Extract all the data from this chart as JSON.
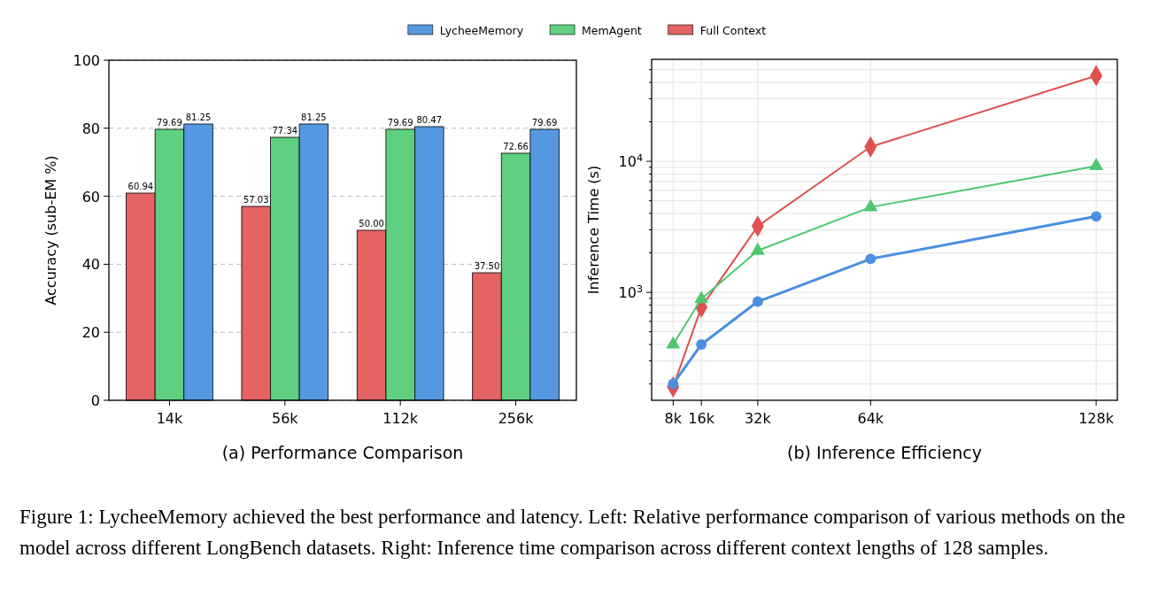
{
  "chart_data": [
    {
      "type": "bar",
      "categories": [
        "14k",
        "56k",
        "112k",
        "256k"
      ],
      "ylabel": "Accuracy (sub-EM %)",
      "xlabel": "(a) Performance Comparison",
      "ylim": [
        0,
        100
      ],
      "yticks": [
        0,
        20,
        40,
        60,
        80,
        100
      ],
      "grid": "y",
      "legend": "top",
      "series": [
        {
          "name": "Full Context",
          "color": "#e36463",
          "values": [
            60.94,
            57.03,
            50.0,
            37.5
          ],
          "value_labels": [
            "60.94",
            "57.03",
            "50.00",
            "37.50"
          ]
        },
        {
          "name": "MemAgent",
          "color": "#5fcf80",
          "values": [
            79.69,
            77.34,
            79.69,
            72.66
          ],
          "value_labels": [
            "79.69",
            "77.34",
            "79.69",
            "72.66"
          ]
        },
        {
          "name": "LycheeMemory",
          "color": "#5598e0",
          "values": [
            81.25,
            81.25,
            80.47,
            79.69
          ],
          "value_labels": [
            "81.25",
            "81.25",
            "80.47",
            "79.69"
          ]
        }
      ],
      "annotations": [
        "Figure 1: LycheeMemory achieved the best performance and latency. Left: Relative performance comparison of various methods on the model across different LongBench datasets. Right: Inference time comparison across different context lengths of 128 samples."
      ]
    },
    {
      "type": "line",
      "x": [
        8,
        16,
        32,
        64,
        128
      ],
      "xlim": [
        1.9,
        134
      ],
      "xticks": [
        {
          "value": 8,
          "label": "8k"
        },
        {
          "value": 16,
          "label": "16k"
        },
        {
          "value": 32,
          "label": "32k"
        },
        {
          "value": 64,
          "label": "64k"
        },
        {
          "value": 128,
          "label": "128k"
        }
      ],
      "ylabel": "Inference Time (s)",
      "xlabel": "(b) Inference Efficiency",
      "log": "y",
      "ylim": [
        150,
        60000
      ],
      "yticks": [
        {
          "value": 200,
          "label": null
        },
        {
          "value": 300,
          "label": null
        },
        {
          "value": 400,
          "label": null
        },
        {
          "value": 500,
          "label": null
        },
        {
          "value": 600,
          "label": null
        },
        {
          "value": 700,
          "label": null
        },
        {
          "value": 800,
          "label": null
        },
        {
          "value": 900,
          "label": null
        },
        {
          "value": 1000,
          "label": "10$^{3}$"
        },
        {
          "value": 2000,
          "label": null
        },
        {
          "value": 3000,
          "label": null
        },
        {
          "value": 4000,
          "label": null
        },
        {
          "value": 5000,
          "label": null
        },
        {
          "value": 6000,
          "label": null
        },
        {
          "value": 7000,
          "label": null
        },
        {
          "value": 8000,
          "label": null
        },
        {
          "value": 9000,
          "label": null
        },
        {
          "value": 10000,
          "label": "10$^{4}$"
        },
        {
          "value": 20000,
          "label": null
        },
        {
          "value": 30000,
          "label": null
        },
        {
          "value": 40000,
          "label": null
        },
        {
          "value": 50000,
          "label": null
        }
      ],
      "grid": true,
      "series": [
        {
          "color": "#e05050",
          "marker": "diamond",
          "values": [
            190,
            770,
            3200,
            12900,
            45000
          ]
        },
        {
          "color": "#4fc76f",
          "marker": "triangle",
          "values": [
            400,
            890,
            2080,
            4470,
            9200
          ]
        },
        {
          "color": "#4a8fe0",
          "marker": "circle",
          "values": [
            200,
            400,
            850,
            1800,
            3800
          ]
        }
      ]
    }
  ]
}
